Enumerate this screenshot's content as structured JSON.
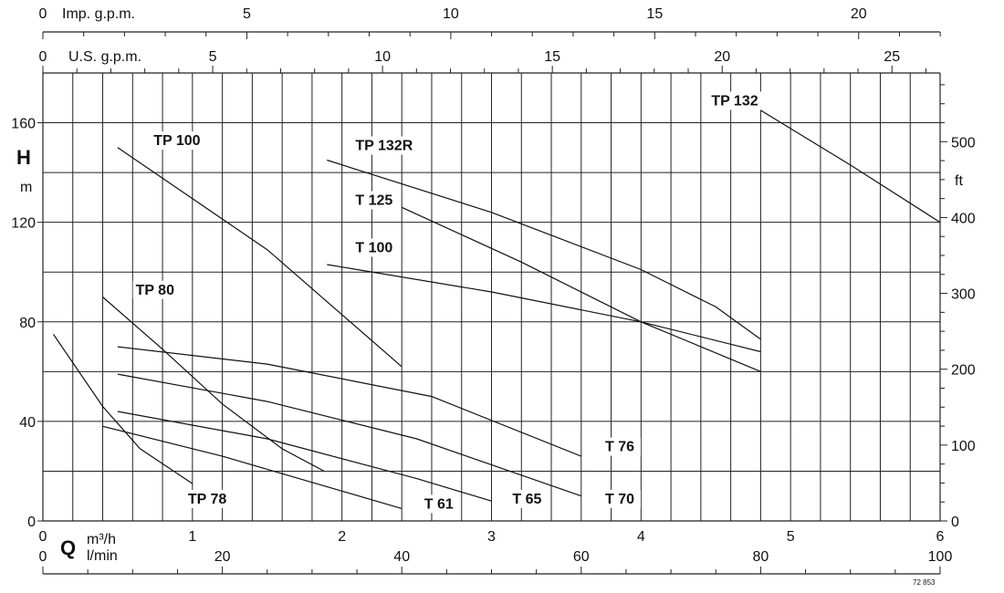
{
  "chart_data": {
    "type": "line",
    "title": "",
    "x_axis": {
      "symbol": "Q",
      "unit_primary": "m³/h",
      "unit_secondary": "l/min",
      "xlim": [
        0,
        6
      ],
      "ticks_m3h": [
        "0",
        "1",
        "2",
        "3",
        "4",
        "5",
        "6"
      ],
      "ticks_lmin": [
        "0",
        "20",
        "40",
        "60",
        "80",
        "100"
      ]
    },
    "y_axis": {
      "symbol": "H",
      "unit": "m",
      "ylim": [
        0,
        180
      ],
      "ticks": [
        "0",
        "40",
        "80",
        "120",
        "160"
      ]
    },
    "top_axes": {
      "imp_label": "Imp. g.p.m.",
      "imp_ticks": [
        "0",
        "5",
        "10",
        "15",
        "20"
      ],
      "us_label": "U.S. g.p.m.",
      "us_ticks": [
        "0",
        "5",
        "10",
        "15",
        "20",
        "25"
      ]
    },
    "right_axis": {
      "unit": "ft",
      "ticks": [
        "0",
        "100",
        "200",
        "300",
        "400",
        "500"
      ]
    },
    "grid": true,
    "series": [
      {
        "name": "TP 78",
        "x": [
          0.07,
          0.4,
          0.65,
          1.0
        ],
        "y": [
          75,
          46,
          29,
          15
        ]
      },
      {
        "name": "TP 80",
        "x": [
          0.4,
          0.8,
          1.2,
          1.6,
          1.88
        ],
        "y": [
          90,
          69,
          47,
          29,
          20
        ]
      },
      {
        "name": "TP 100",
        "x": [
          0.5,
          1.5,
          2.4
        ],
        "y": [
          150,
          109,
          62
        ]
      },
      {
        "name": "T 61",
        "x": [
          0.4,
          1.2,
          2.0,
          2.4
        ],
        "y": [
          38,
          26,
          12,
          5
        ]
      },
      {
        "name": "T 65",
        "x": [
          0.5,
          1.5,
          2.5,
          3.0
        ],
        "y": [
          44,
          33,
          17,
          8
        ]
      },
      {
        "name": "T 70",
        "x": [
          0.5,
          1.5,
          2.5,
          3.6
        ],
        "y": [
          59,
          48,
          33,
          10
        ]
      },
      {
        "name": "T 76",
        "x": [
          0.5,
          1.5,
          2.6,
          3.6
        ],
        "y": [
          70,
          63,
          50,
          26
        ]
      },
      {
        "name": "T 100",
        "x": [
          1.9,
          3.0,
          4.0,
          4.8
        ],
        "y": [
          103,
          92,
          80,
          68
        ]
      },
      {
        "name": "T 125",
        "x": [
          2.4,
          3.2,
          4.0,
          4.8
        ],
        "y": [
          126,
          104,
          80,
          60
        ]
      },
      {
        "name": "TP 132R",
        "x": [
          1.9,
          3.0,
          4.0,
          4.5,
          4.8
        ],
        "y": [
          145,
          124,
          101,
          86,
          73
        ]
      },
      {
        "name": "TP 132",
        "x": [
          4.8,
          5.4,
          6.0
        ],
        "y": [
          165,
          143,
          120
        ]
      }
    ],
    "labels": [
      {
        "text": "TP 78",
        "x": 0.97,
        "y": 7
      },
      {
        "text": "TP 80",
        "x": 0.62,
        "y": 91
      },
      {
        "text": "TP 100",
        "x": 0.74,
        "y": 151
      },
      {
        "text": "T 61",
        "x": 2.55,
        "y": 5
      },
      {
        "text": "T 65",
        "x": 3.14,
        "y": 7
      },
      {
        "text": "T 70",
        "x": 3.76,
        "y": 7
      },
      {
        "text": "T 76",
        "x": 3.76,
        "y": 28
      },
      {
        "text": "T 100",
        "x": 2.09,
        "y": 108
      },
      {
        "text": "T 125",
        "x": 2.09,
        "y": 127
      },
      {
        "text": "TP 132R",
        "x": 2.09,
        "y": 149
      },
      {
        "text": "TP 132",
        "x": 4.47,
        "y": 167
      }
    ],
    "code": "72 853"
  }
}
